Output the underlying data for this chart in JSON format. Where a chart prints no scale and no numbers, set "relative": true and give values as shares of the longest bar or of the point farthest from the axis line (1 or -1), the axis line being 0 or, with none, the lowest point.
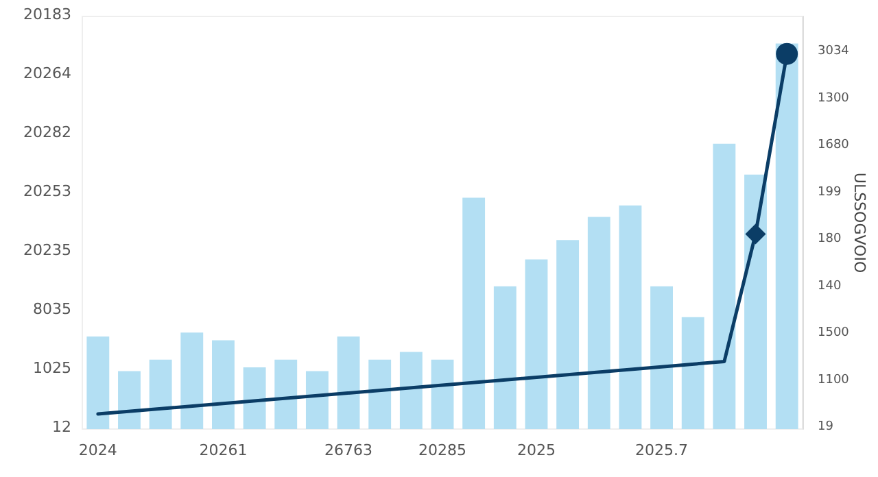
{
  "chart_data": {
    "type": "bar",
    "relative": true,
    "y2label": "ULSSOGVOIO",
    "categories": [
      "2024",
      null,
      null,
      null,
      "20261",
      null,
      null,
      null,
      "26763",
      null,
      null,
      "20285",
      null,
      null,
      "2025",
      null,
      null,
      null,
      "2025.7",
      null,
      null,
      null,
      null
    ],
    "series": [
      {
        "color": "#b3dff3",
        "values": [
          0.24,
          0.15,
          0.18,
          0.25,
          0.23,
          0.16,
          0.18,
          0.15,
          0.24,
          0.18,
          0.2,
          0.18,
          0.6,
          0.37,
          0.44,
          0.49,
          0.55,
          0.58,
          0.37,
          0.29,
          0.74,
          0.66,
          1
        ]
      },
      {
        "type": "line",
        "axis": "y2",
        "color": "#0b3d66",
        "marker": "none",
        "values": [
          0.04,
          null,
          null,
          null,
          null,
          null,
          null,
          null,
          null,
          null,
          null,
          null,
          null,
          null,
          null,
          null,
          null,
          null,
          null,
          null,
          0.18,
          0.52,
          1
        ]
      },
      {
        "type": "scatter",
        "axis": "y2",
        "color": "#0b3d66",
        "marker": "diamond",
        "values": [
          null,
          null,
          null,
          null,
          null,
          null,
          null,
          null,
          null,
          null,
          null,
          null,
          null,
          null,
          null,
          null,
          null,
          null,
          null,
          null,
          null,
          0.52,
          null
        ]
      },
      {
        "type": "scatter",
        "axis": "y2",
        "color": "#0b3d66",
        "marker": "circle",
        "values": [
          null,
          null,
          null,
          null,
          null,
          null,
          null,
          null,
          null,
          null,
          null,
          null,
          null,
          null,
          null,
          null,
          null,
          null,
          null,
          null,
          null,
          null,
          1
        ]
      }
    ],
    "annotations": [
      "12",
      "1025",
      "8035",
      "20235",
      "20253",
      "20282",
      "20264",
      "20183",
      "19",
      "1100",
      "1500",
      "140",
      "180",
      "199",
      "1680",
      "1300",
      "3034"
    ],
    "data_labels": false
  }
}
